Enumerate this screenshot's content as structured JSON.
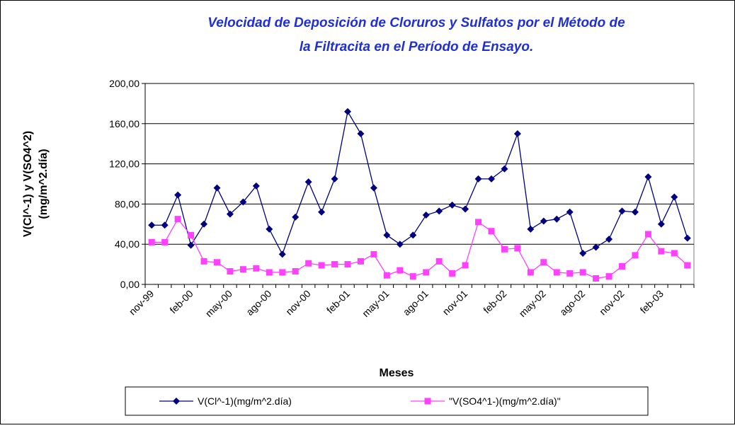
{
  "chart_data": {
    "type": "line",
    "title_lines": [
      "Velocidad de Deposición de Cloruros y Sulfatos por el Método de",
      "la Filtracita en el Período de Ensayo."
    ],
    "y_label_lines": [
      "V(Cl^-1) y V(SO4^2)",
      "(mg/m^2.día)"
    ],
    "x_label": "Meses",
    "categories": [
      "nov-99",
      null,
      null,
      "feb-00",
      null,
      null,
      "may-00",
      null,
      null,
      "ago-00",
      null,
      null,
      "nov-00",
      null,
      null,
      "feb-01",
      null,
      null,
      "may-01",
      null,
      null,
      "ago-01",
      null,
      null,
      "nov-01",
      null,
      null,
      "feb-02",
      null,
      null,
      "may-02",
      null,
      null,
      "ago-02",
      null,
      null,
      "nov-02",
      null,
      null,
      "feb-03",
      null,
      null
    ],
    "series": [
      {
        "name": "V(Cl^-1)(mg/m^2.día)",
        "color": "#000080",
        "marker": "diamond",
        "values": [
          59,
          59,
          89,
          39,
          60,
          96,
          70,
          82,
          98,
          55,
          30,
          67,
          102,
          72,
          105,
          172,
          150,
          96,
          49,
          40,
          49,
          69,
          73,
          79,
          75,
          105,
          105,
          115,
          150,
          55,
          63,
          65,
          72,
          31,
          37,
          45,
          73,
          72,
          107,
          60,
          87,
          46
        ]
      },
      {
        "name": "\"V(SO4^1-)(mg/m^2.día)\"",
        "color": "#ff40ff",
        "marker": "square",
        "values": [
          42,
          42,
          65,
          49,
          23,
          22,
          13,
          15,
          16,
          12,
          12,
          13,
          21,
          19,
          20,
          20,
          23,
          30,
          9,
          14,
          8,
          12,
          23,
          11,
          19,
          62,
          53,
          35,
          36,
          12,
          22,
          12,
          11,
          12,
          6,
          8,
          18,
          29,
          50,
          33,
          31,
          19
        ]
      }
    ],
    "ylim": [
      0,
      200
    ],
    "yticks": [
      {
        "value": 0,
        "label": "0,00"
      },
      {
        "value": 40,
        "label": "40,00"
      },
      {
        "value": 80,
        "label": "80,00"
      },
      {
        "value": 120,
        "label": "120,00"
      },
      {
        "value": 160,
        "label": "160,00"
      },
      {
        "value": 200,
        "label": "200,00"
      }
    ],
    "grid": true,
    "legend": "bottom"
  }
}
